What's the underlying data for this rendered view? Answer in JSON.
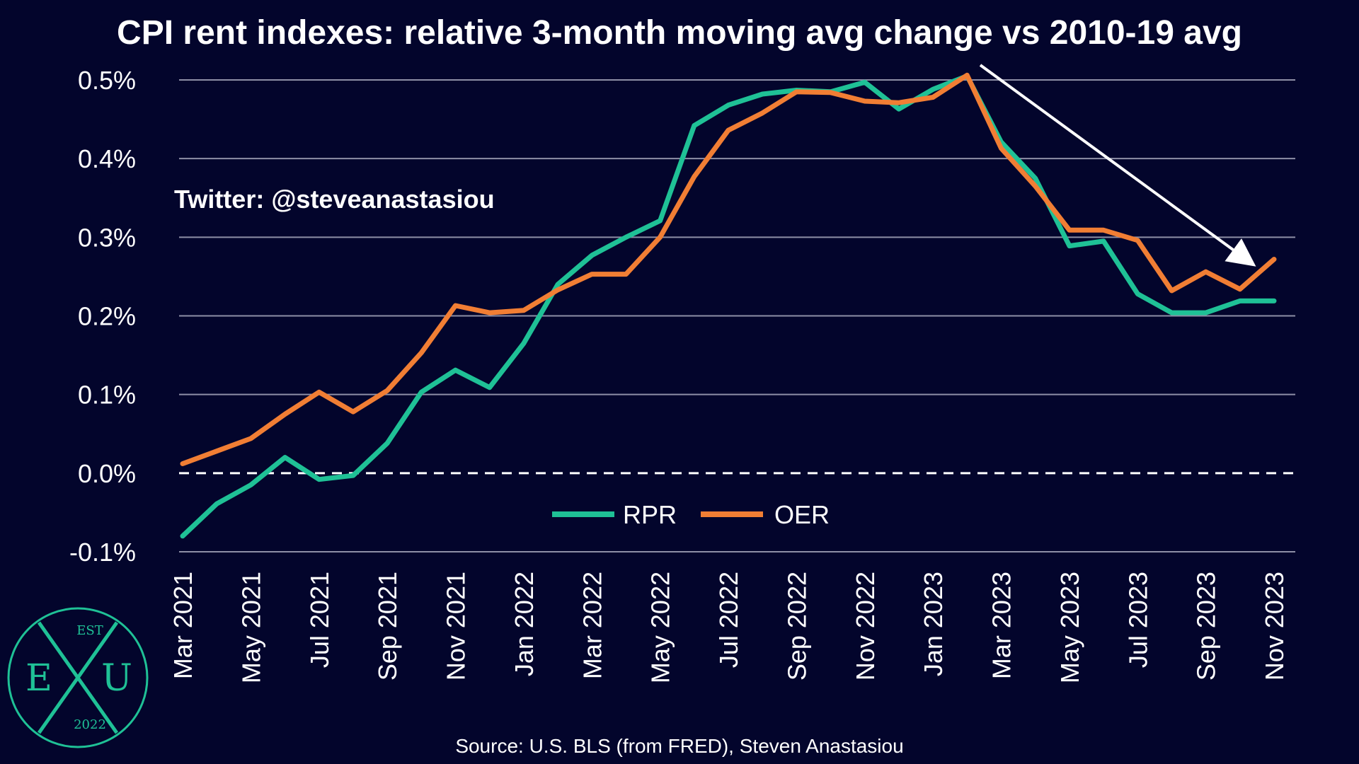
{
  "chart_data": {
    "type": "line",
    "title": "CPI rent indexes: relative 3-month moving avg change vs 2010-19 avg",
    "xlabel": "",
    "ylabel": "",
    "ylim": [
      -0.1,
      0.5
    ],
    "yticks": [
      -0.1,
      0.0,
      0.1,
      0.2,
      0.3,
      0.4,
      0.5
    ],
    "ytick_labels": [
      "-0.1%",
      "0.0%",
      "0.1%",
      "0.2%",
      "0.3%",
      "0.4%",
      "0.5%"
    ],
    "grid": true,
    "zero_line": "dashed",
    "legend_position": "bottom-center",
    "x": [
      "Mar 2021",
      "Apr 2021",
      "May 2021",
      "Jun 2021",
      "Jul 2021",
      "Aug 2021",
      "Sep 2021",
      "Oct 2021",
      "Nov 2021",
      "Dec 2021",
      "Jan 2022",
      "Feb 2022",
      "Mar 2022",
      "Apr 2022",
      "May 2022",
      "Jun 2022",
      "Jul 2022",
      "Aug 2022",
      "Sep 2022",
      "Oct 2022",
      "Nov 2022",
      "Dec 2022",
      "Jan 2023",
      "Feb 2023",
      "Mar 2023",
      "Apr 2023",
      "May 2023",
      "Jun 2023",
      "Jul 2023",
      "Aug 2023",
      "Sep 2023",
      "Oct 2023",
      "Nov 2023"
    ],
    "x_tick_labels": [
      "Mar 2021",
      "May 2021",
      "Jul 2021",
      "Sep 2021",
      "Nov 2021",
      "Jan 2022",
      "Mar 2022",
      "May 2022",
      "Jul 2022",
      "Sep 2022",
      "Nov 2022",
      "Jan 2023",
      "Mar 2023",
      "May 2023",
      "Jul 2023",
      "Sep 2023",
      "Nov 2023"
    ],
    "series": [
      {
        "name": "RPR",
        "color": "#1fc196",
        "values": [
          -0.08,
          -0.039,
          -0.015,
          0.02,
          -0.008,
          -0.003,
          0.038,
          0.103,
          0.131,
          0.109,
          0.165,
          0.24,
          0.277,
          0.3,
          0.321,
          0.442,
          0.468,
          0.482,
          0.487,
          0.485,
          0.497,
          0.463,
          0.488,
          0.505,
          0.421,
          0.375,
          0.289,
          0.295,
          0.228,
          0.204,
          0.204,
          0.219,
          0.219
        ]
      },
      {
        "name": "OER",
        "color": "#f17e34",
        "values": [
          0.012,
          0.028,
          0.044,
          0.075,
          0.103,
          0.078,
          0.105,
          0.153,
          0.213,
          0.204,
          0.207,
          0.233,
          0.253,
          0.253,
          0.3,
          0.377,
          0.436,
          0.458,
          0.485,
          0.484,
          0.473,
          0.471,
          0.478,
          0.506,
          0.413,
          0.365,
          0.309,
          0.309,
          0.296,
          0.232,
          0.256,
          0.234,
          0.272
        ]
      }
    ]
  },
  "twitter_handle": "Twitter: @steveanastasiou",
  "source": "Source: U.S. BLS (from FRED), Steven Anastasiou",
  "logo": {
    "top": "EST",
    "left": "E",
    "middle": "X",
    "right": "U",
    "bottom": "2022",
    "color": "#1fc196"
  },
  "colors": {
    "background": "#03052c",
    "grid": "#8e8fa6",
    "arrow": "#ffffff"
  }
}
